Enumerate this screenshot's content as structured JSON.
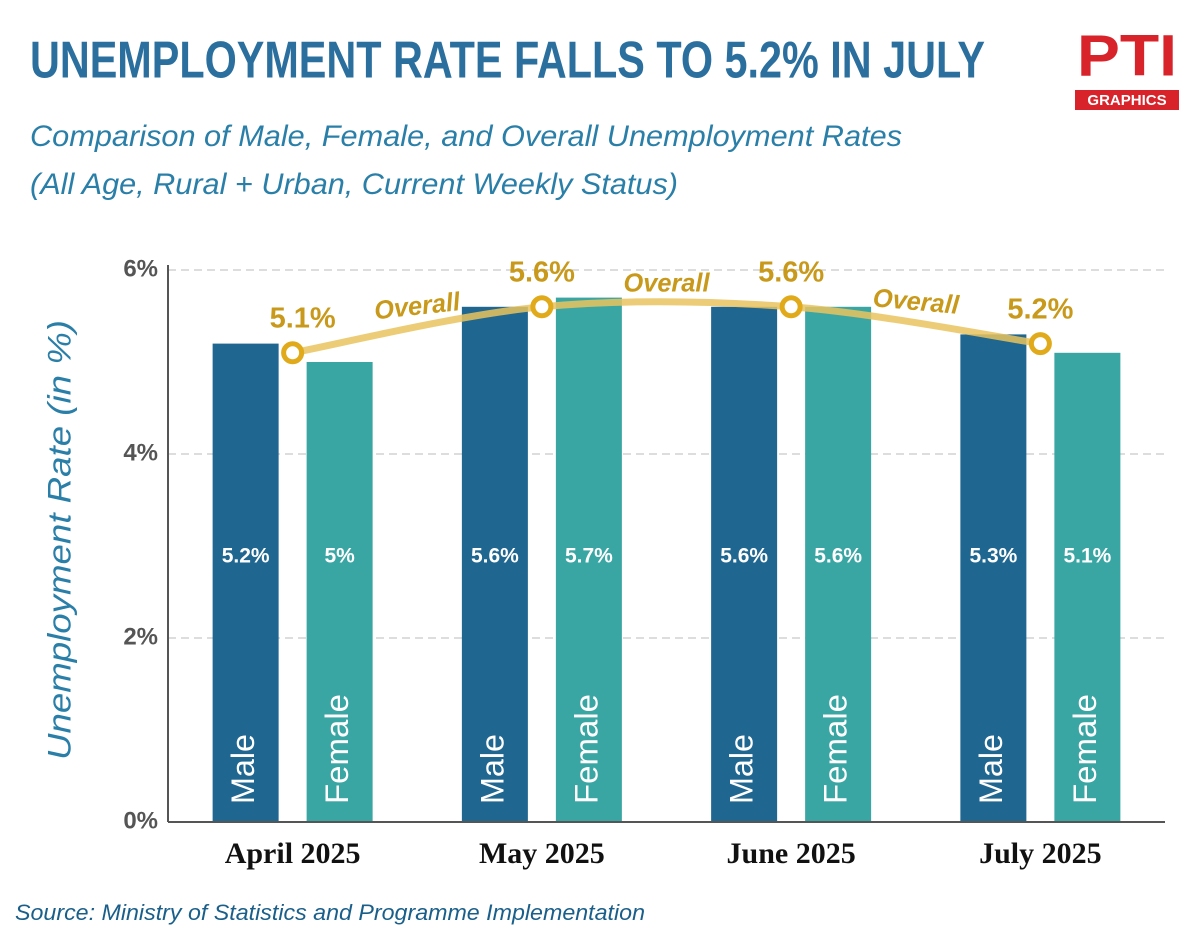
{
  "chart_data": {
    "type": "bar",
    "title": "UNEMPLOYMENT RATE FALLS TO 5.2% IN JULY",
    "subtitle": [
      "Comparison of Male, Female, and Overall Unemployment Rates",
      "(All Age, Rural + Urban, Current Weekly Status)"
    ],
    "y_label": "Unemployment Rate (in %)",
    "source": "Source: Ministry of Statistics and Programme Implementation",
    "logo": {
      "text": "PTI",
      "caption": "GRAPHICS"
    },
    "categories": [
      "April 2025",
      "May 2025",
      "June 2025",
      "July 2025"
    ],
    "series": [
      {
        "name": "Male",
        "color": "#1f6690",
        "values": [
          5.2,
          5.6,
          5.6,
          5.3
        ],
        "value_labels": [
          "5.2%",
          "5.6%",
          "5.6%",
          "5.3%"
        ]
      },
      {
        "name": "Female",
        "color": "#3aa6a4",
        "values": [
          5,
          5.7,
          5.6,
          5.1
        ],
        "value_labels": [
          "5%",
          "5.7%",
          "5.6%",
          "5.1%"
        ]
      },
      {
        "name": "Overall",
        "type": "line",
        "color": "#e9c35e",
        "values": [
          5.1,
          5.6,
          5.6,
          5.2
        ],
        "value_labels": [
          "5.1%",
          "5.6%",
          "5.6%",
          "5.2%"
        ]
      }
    ],
    "ylim": [
      0,
      6
    ],
    "yticks": [
      {
        "value": 0,
        "label": "0%"
      },
      {
        "value": 2,
        "label": "2%"
      },
      {
        "value": 4,
        "label": "4%"
      },
      {
        "value": 6,
        "label": "6%"
      }
    ],
    "grid": true
  }
}
